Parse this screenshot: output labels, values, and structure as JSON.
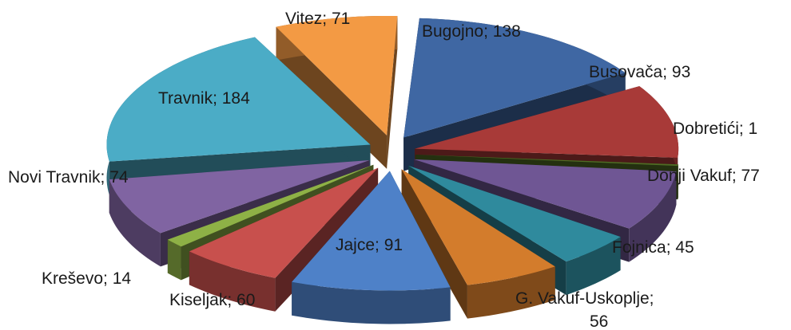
{
  "chart_data": {
    "type": "pie",
    "variant": "exploded-3d",
    "title": "",
    "categories": [
      "Bugojno",
      "Busovača",
      "Dobretići",
      "Donji Vakuf",
      "Fojnica",
      "G. Vakuf-Uskoplje",
      "Jajce",
      "Kiseljak",
      "Kreševo",
      "Novi Travnik",
      "Travnik",
      "Vitez"
    ],
    "values": [
      138,
      93,
      1,
      77,
      45,
      56,
      91,
      60,
      14,
      74,
      184,
      71
    ],
    "labels": [
      "Bugojno; 138",
      "Busovača; 93",
      "Dobretići; 1",
      "Donji Vakuf; 77",
      "Fojnica; 45",
      "G. Vakuf-Uskoplje;",
      "Jajce; 91",
      "Kiseljak; 60",
      "Kreševo; 14",
      "Novi Travnik; 74",
      "Travnik; 184",
      "Vitez; 71"
    ],
    "label_value_line": "56",
    "colors": [
      "#3F67A3",
      "#A83A38",
      "#4F6B24",
      "#6F5694",
      "#2F8A9D",
      "#D37C2C",
      "#4E81C8",
      "#C8504D",
      "#8EB146",
      "#8064A2",
      "#4BACC6",
      "#F39A44"
    ],
    "legend": "none"
  }
}
